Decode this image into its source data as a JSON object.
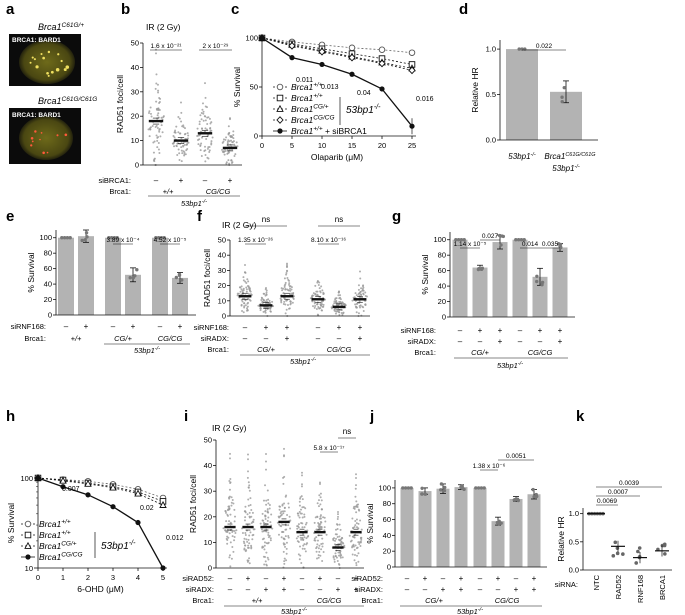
{
  "panel_letters": {
    "a": "a",
    "b": "b",
    "c": "c",
    "d": "d",
    "e": "e",
    "f": "f",
    "g": "g",
    "h": "h",
    "i": "i",
    "j": "j",
    "k": "k"
  },
  "colors": {
    "bar": "#b3b3b3",
    "dots": "#9a9a9a",
    "line": "#222222",
    "nucleus": "#c8c040",
    "background_micro": "#0b0b0b"
  },
  "texts": {
    "ir": "IR (2 Gy)",
    "rad51_ylabel": "RAD51 foci/cell",
    "survival_ylabel": "% Survival",
    "relhr_ylabel": "Relative HR",
    "brca1_row": "Brca1:",
    "sibrca1_row": "siBRCA1:",
    "sirnf168_row": "siRNF168:",
    "siradx_row": "siRADX:",
    "sirad52_row": "siRAD52:",
    "sirna_row": "siRNA:",
    "g53bp1": "53bp1",
    "g53bp1_sup": "-/-",
    "wt": "+/+",
    "cgwt": "CG/+",
    "cgcg": "CG/CG",
    "minus": "–",
    "plus": "+",
    "ns": "ns"
  },
  "micro": {
    "top_title": "Brca1",
    "top_sup": "C61G/+",
    "top_label": "BRCA1: BARD1",
    "bottom_title": "Brca1",
    "bottom_sup": "C61G/C61G",
    "bottom_label": "BRCA1: BARD1"
  },
  "chart_data": [
    {
      "panel": "b",
      "type": "scatter",
      "ylabel": "RAD51 foci/cell",
      "ylim": [
        0,
        50
      ],
      "categories": [
        "+/+ –",
        "+/+ +",
        "CG/CG –",
        "CG/CG +"
      ],
      "values": [
        18,
        10,
        13,
        7
      ],
      "pvalues": [
        "1.6 x 10⁻²¹",
        "2 x 10⁻²⁹"
      ]
    },
    {
      "panel": "c",
      "type": "line",
      "xlabel": "Olaparib (μM)",
      "ylabel": "% Survival",
      "ylim": [
        0,
        100
      ],
      "x": [
        0,
        5,
        10,
        15,
        20,
        25
      ],
      "series": [
        {
          "name": "Brca1 +/+",
          "values": [
            100,
            96,
            93,
            90,
            88,
            85
          ]
        },
        {
          "name": "Brca1 +/+",
          "values": [
            100,
            94,
            89,
            84,
            79,
            73
          ]
        },
        {
          "name": "Brca1 CG/+",
          "values": [
            100,
            93,
            87,
            81,
            75,
            69
          ]
        },
        {
          "name": "Brca1 CG/CG",
          "values": [
            100,
            92,
            86,
            80,
            74,
            67
          ]
        },
        {
          "name": "Brca1 +/+ + siBRCA1",
          "values": [
            100,
            80,
            73,
            63,
            48,
            10
          ]
        }
      ],
      "pvalues": [
        "0.011",
        "0.013",
        "0.04",
        "0.016"
      ],
      "legend_group": "53bp1 -/-"
    },
    {
      "panel": "d",
      "type": "bar",
      "ylabel": "Relative HR",
      "ylim": [
        0,
        1.1
      ],
      "categories": [
        "53bp1 -/-",
        "Brca1 C61G/C61G 53bp1 -/-"
      ],
      "values": [
        1.0,
        0.53
      ],
      "pvalue": "0.022"
    },
    {
      "panel": "e",
      "type": "bar",
      "ylabel": "% Survival",
      "ylim": [
        0,
        110
      ],
      "categories": [
        "+/+ –",
        "+/+ +",
        "CG/+ –",
        "CG/+ +",
        "CG/CG –",
        "CG/CG +"
      ],
      "values": [
        100,
        102,
        100,
        52,
        100,
        48
      ],
      "pvalues": [
        "3.89 x 10⁻⁴",
        "4.52 x 10⁻⁵"
      ]
    },
    {
      "panel": "f",
      "type": "scatter",
      "ylabel": "RAD51 foci/cell",
      "ylim": [
        0,
        50
      ],
      "categories": [
        "CG/+ – –",
        "CG/+ + –",
        "CG/+ + +",
        "CG/CG – –",
        "CG/CG + –",
        "CG/CG + +"
      ],
      "values": [
        13,
        7,
        13,
        11,
        6,
        11
      ],
      "pvalues": [
        "1.35 x 10⁻²⁶",
        "8.10 x 10⁻¹⁶"
      ]
    },
    {
      "panel": "g",
      "type": "bar",
      "ylabel": "% Survival",
      "ylim": [
        0,
        110
      ],
      "categories": [
        "CG/+ – –",
        "CG/+ + –",
        "CG/+ + +",
        "CG/CG – –",
        "CG/CG + –",
        "CG/CG + +"
      ],
      "values": [
        100,
        64,
        97,
        100,
        52,
        90
      ],
      "pvalues": [
        "1.14 x 10⁻⁵",
        "0.027",
        "0.014",
        "0.035"
      ]
    },
    {
      "panel": "h",
      "type": "line",
      "xlabel": "6-OHD (μM)",
      "ylabel": "% Survival",
      "yscale": "log",
      "ylim": [
        10,
        100
      ],
      "x": [
        0,
        1,
        2,
        3,
        4,
        5
      ],
      "series": [
        {
          "name": "Brca1 +/+",
          "values": [
            100,
            96,
            92,
            85,
            75,
            60
          ]
        },
        {
          "name": "Brca1 +/+",
          "values": [
            100,
            95,
            88,
            80,
            70,
            55
          ]
        },
        {
          "name": "Brca1 CG/+",
          "values": [
            100,
            93,
            86,
            78,
            67,
            50
          ]
        },
        {
          "name": "Brca1 CG/CG",
          "values": [
            100,
            80,
            65,
            48,
            32,
            10
          ]
        }
      ],
      "pvalues": [
        "0.007",
        "0.02",
        "0.012"
      ],
      "legend_group": "53bp1 -/-"
    },
    {
      "panel": "i",
      "type": "scatter",
      "ylabel": "RAD51 foci/cell",
      "ylim": [
        0,
        50
      ],
      "categories": [
        "+/+ – –",
        "+/+ + –",
        "+/+ – +",
        "+/+ + +",
        "CG/CG – –",
        "CG/CG + –",
        "CG/CG – +",
        "CG/CG + +"
      ],
      "values": [
        16,
        16,
        16,
        18,
        14,
        14,
        8,
        14
      ],
      "pvalues": [
        "5.8 x 10⁻¹⁷"
      ]
    },
    {
      "panel": "j",
      "type": "bar",
      "ylabel": "% Survival",
      "ylim": [
        0,
        110
      ],
      "categories": [
        "CG/+ – –",
        "CG/+ + –",
        "CG/+ – +",
        "CG/+ + +",
        "CG/CG – –",
        "CG/CG + –",
        "CG/CG – +",
        "CG/CG + +"
      ],
      "values": [
        100,
        96,
        99,
        101,
        100,
        58,
        86,
        92
      ],
      "pvalues": [
        "1.38 x 10⁻⁶",
        "0.0051"
      ]
    },
    {
      "panel": "k",
      "type": "bar",
      "ylabel": "Relative HR",
      "ylim": [
        0,
        1.1
      ],
      "categories": [
        "NTC",
        "RAD52",
        "RNF168",
        "BRCA1"
      ],
      "values": [
        1.0,
        0.42,
        0.22,
        0.34
      ],
      "pvalues": [
        "0.0069",
        "0.0007",
        "0.0039"
      ]
    }
  ]
}
